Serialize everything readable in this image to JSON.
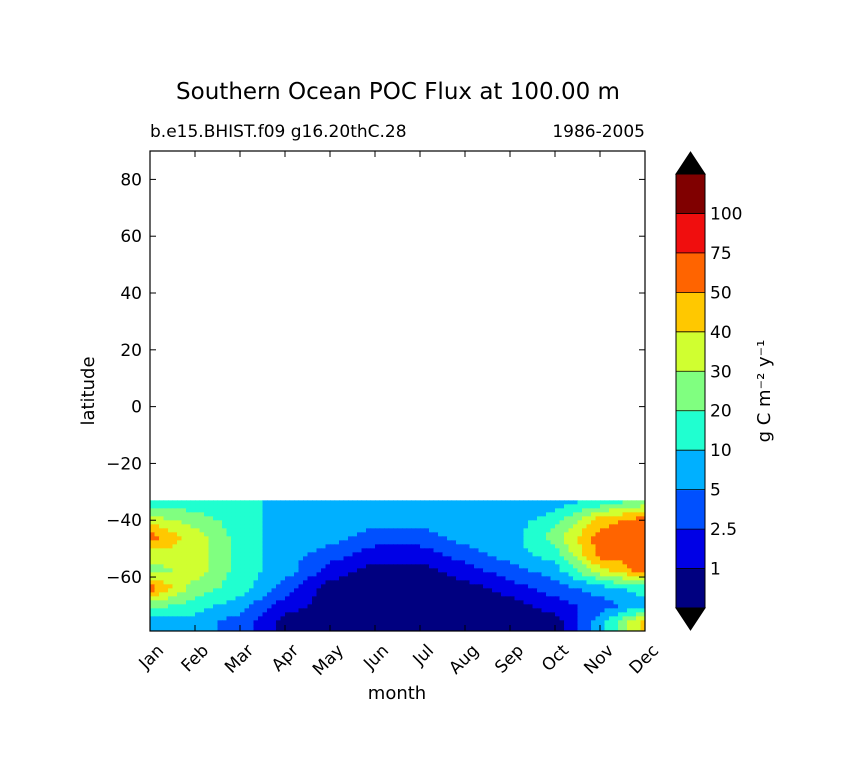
{
  "chart_data": {
    "type": "contourf",
    "title": "Southern Ocean POC Flux at 100.00 m",
    "subtitle_left": "b.e15.BHIST.f09 g16.20thC.28",
    "subtitle_right": "1986-2005",
    "xlabel": "month",
    "ylabel": "latitude",
    "x_categories": [
      "Jan",
      "Feb",
      "Mar",
      "Apr",
      "May",
      "Jun",
      "Jul",
      "Aug",
      "Sep",
      "Oct",
      "Nov",
      "Dec"
    ],
    "yticks": [
      80,
      60,
      40,
      20,
      0,
      -20,
      -40,
      -60
    ],
    "ylim": [
      -79,
      90
    ],
    "data_lat_range": [
      -79,
      -33
    ],
    "colorbar": {
      "label": "g C m⁻² y⁻¹",
      "levels": [
        "1",
        "2.5",
        "5",
        "10",
        "20",
        "30",
        "40",
        "50",
        "75",
        "100"
      ],
      "colors": [
        "#000080",
        "#0000e6",
        "#0050ff",
        "#00b0ff",
        "#20ffd0",
        "#80ff80",
        "#d0ff30",
        "#ffc800",
        "#ff6400",
        "#f00e0e",
        "#800000"
      ],
      "extend": "both"
    },
    "field": {
      "description_levels": "band index 0..10 per colorbar.colors",
      "lat": [
        -34,
        -40,
        -46,
        -52,
        -58,
        -64,
        -70,
        -76
      ],
      "months": [
        1,
        2,
        3,
        4,
        5,
        6,
        7,
        8,
        9,
        10,
        11,
        12
      ],
      "values": [
        [
          4,
          4,
          4,
          3,
          3,
          3,
          3,
          3,
          3,
          3,
          4,
          5
        ],
        [
          6,
          5,
          4,
          3,
          3,
          3,
          3,
          3,
          3,
          4,
          7,
          8
        ],
        [
          8,
          6,
          4,
          3,
          3,
          2,
          2,
          3,
          3,
          5,
          8,
          8
        ],
        [
          6,
          6,
          4,
          3,
          2,
          1,
          1,
          2,
          3,
          4,
          8,
          8
        ],
        [
          5,
          6,
          4,
          3,
          1,
          0,
          0,
          1,
          2,
          3,
          6,
          8
        ],
        [
          8,
          5,
          4,
          2,
          0,
          0,
          0,
          0,
          1,
          2,
          3,
          4
        ],
        [
          5,
          4,
          3,
          1,
          0,
          0,
          0,
          0,
          0,
          1,
          2,
          3
        ],
        [
          3,
          3,
          2,
          0,
          0,
          0,
          0,
          0,
          0,
          0,
          3,
          7
        ]
      ]
    }
  }
}
